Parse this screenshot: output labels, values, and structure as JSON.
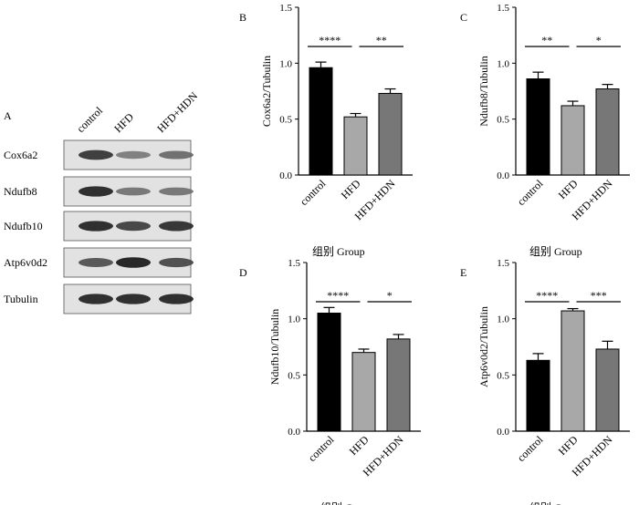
{
  "blot": {
    "panel_letter": "A",
    "lanes": [
      "control",
      "HFD",
      "HFD+HDN"
    ],
    "rows": [
      {
        "name": "Cox6a2",
        "intensity": [
          0.85,
          0.45,
          0.55
        ]
      },
      {
        "name": "Ndufb8",
        "intensity": [
          0.95,
          0.5,
          0.5
        ]
      },
      {
        "name": "Ndufb10",
        "intensity": [
          0.95,
          0.8,
          0.9
        ]
      },
      {
        "name": "Atp6v0d2",
        "intensity": [
          0.7,
          1.0,
          0.75
        ]
      },
      {
        "name": "Tubulin",
        "intensity": [
          0.95,
          0.95,
          0.95
        ]
      }
    ]
  },
  "chart_data": [
    {
      "type": "bar",
      "panel_letter": "B",
      "categories": [
        "control",
        "HFD",
        "HFD+HDN"
      ],
      "values": [
        0.96,
        0.52,
        0.73
      ],
      "errors": [
        0.05,
        0.03,
        0.04
      ],
      "ylabel": "Cox6a2/Tubulin",
      "xlabel": "组别  Group",
      "ylim": [
        0,
        1.5
      ],
      "yticks": [
        "0.0",
        "0.5",
        "1.0",
        "1.5"
      ],
      "bar_colors": [
        "#000000",
        "#a8a8a8",
        "#777777"
      ],
      "significance": [
        {
          "from": 0,
          "to": 1,
          "label": "****"
        },
        {
          "from": 1,
          "to": 2,
          "label": "**"
        }
      ]
    },
    {
      "type": "bar",
      "panel_letter": "C",
      "categories": [
        "control",
        "HFD",
        "HFD+HDN"
      ],
      "values": [
        0.86,
        0.62,
        0.77
      ],
      "errors": [
        0.06,
        0.04,
        0.04
      ],
      "ylabel": "Ndufb8/Tubulin",
      "xlabel": "组别  Group",
      "ylim": [
        0,
        1.5
      ],
      "yticks": [
        "0.0",
        "0.5",
        "1.0",
        "1.5"
      ],
      "bar_colors": [
        "#000000",
        "#a8a8a8",
        "#777777"
      ],
      "significance": [
        {
          "from": 0,
          "to": 1,
          "label": "**"
        },
        {
          "from": 1,
          "to": 2,
          "label": "*"
        }
      ]
    },
    {
      "type": "bar",
      "panel_letter": "D",
      "categories": [
        "control",
        "HFD",
        "HFD+HDN"
      ],
      "values": [
        1.05,
        0.7,
        0.82
      ],
      "errors": [
        0.05,
        0.03,
        0.04
      ],
      "ylabel": "Ndufb10/Tubulin",
      "xlabel": "组别  Group",
      "ylim": [
        0,
        1.5
      ],
      "yticks": [
        "0.0",
        "0.5",
        "1.0",
        "1.5"
      ],
      "bar_colors": [
        "#000000",
        "#a8a8a8",
        "#777777"
      ],
      "significance": [
        {
          "from": 0,
          "to": 1,
          "label": "****"
        },
        {
          "from": 1,
          "to": 2,
          "label": "*"
        }
      ]
    },
    {
      "type": "bar",
      "panel_letter": "E",
      "categories": [
        "control",
        "HFD",
        "HFD+HDN"
      ],
      "values": [
        0.63,
        1.07,
        0.73
      ],
      "errors": [
        0.06,
        0.02,
        0.07
      ],
      "ylabel": "Atp6v0d2/Tubulin",
      "xlabel": "组别  Group",
      "ylim": [
        0,
        1.5
      ],
      "yticks": [
        "0.0",
        "0.5",
        "1.0",
        "1.5"
      ],
      "bar_colors": [
        "#000000",
        "#a8a8a8",
        "#777777"
      ],
      "significance": [
        {
          "from": 0,
          "to": 1,
          "label": "****"
        },
        {
          "from": 1,
          "to": 2,
          "label": "***"
        }
      ]
    }
  ]
}
